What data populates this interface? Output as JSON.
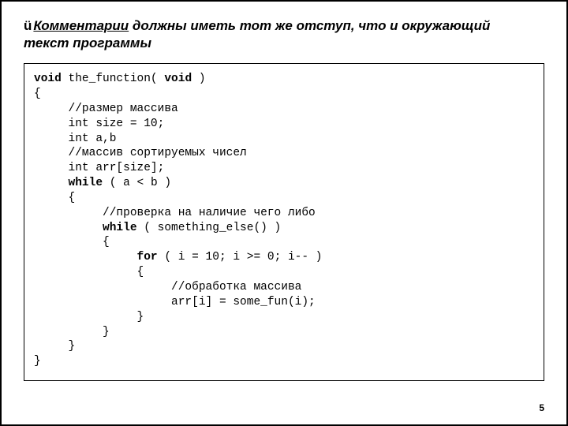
{
  "heading": {
    "check": "ü",
    "line1_u": "Комментарии",
    "line1_rest": " должны иметь тот же отступ, что и окружающий",
    "line2": "текст программы"
  },
  "code": {
    "l1a": "void",
    "l1b": " the_function( ",
    "l1c": "void",
    "l1d": " )",
    "l2": "{",
    "l3": "     //размер массива",
    "l4": "     int size = 10;",
    "l5": "     int a,b",
    "l6": "     //массив сортируемых чисел",
    "l7": "     int arr[size];",
    "l8a": "     ",
    "l8b": "while",
    "l8c": " ( a < b )",
    "l9": "     {",
    "l10": "          //проверка на наличие чего либо",
    "l11a": "          ",
    "l11b": "while",
    "l11c": " ( something_else() )",
    "l12": "          {",
    "l13a": "               ",
    "l13b": "for",
    "l13c": " ( i = 10; i >= 0; i-- )",
    "l14": "               {",
    "l15": "                    //обработка массива",
    "l16": "                    arr[i] = some_fun(i);",
    "l17": "               }",
    "l18": "          }",
    "l19": "     }",
    "l20": "}"
  },
  "page_number": "5",
  "colors": {
    "border": "#000000",
    "text": "#000000",
    "bg": "#ffffff"
  }
}
